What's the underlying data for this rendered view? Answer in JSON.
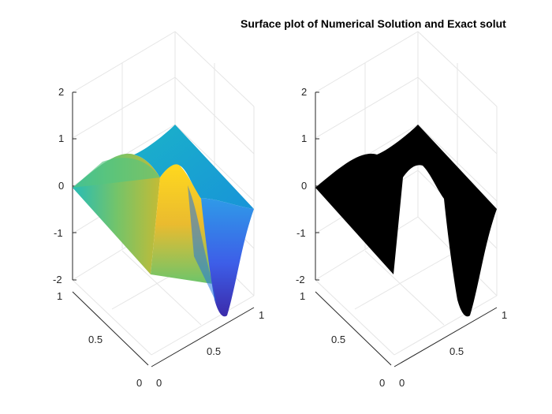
{
  "chart_data": {
    "type": "surface",
    "title": "Surface plot of Numerical Solution and Exact solut",
    "x": [
      0,
      0.5,
      1
    ],
    "y": [
      0,
      0.5,
      1
    ],
    "zlim": [
      -2,
      2
    ],
    "x_ticks": [
      "0",
      "0.5",
      "1"
    ],
    "y_ticks": [
      "0",
      "0.5",
      "1"
    ],
    "z_ticks": [
      "2",
      "1",
      "0",
      "-1",
      "-2"
    ],
    "grid": true,
    "panels": [
      {
        "name": "",
        "colormap": "parula"
      },
      {
        "name": "",
        "facecolor": "#000000"
      }
    ],
    "colors": {
      "axis": "#262626",
      "grid": "#e5e5e5",
      "text": "#000000"
    }
  }
}
